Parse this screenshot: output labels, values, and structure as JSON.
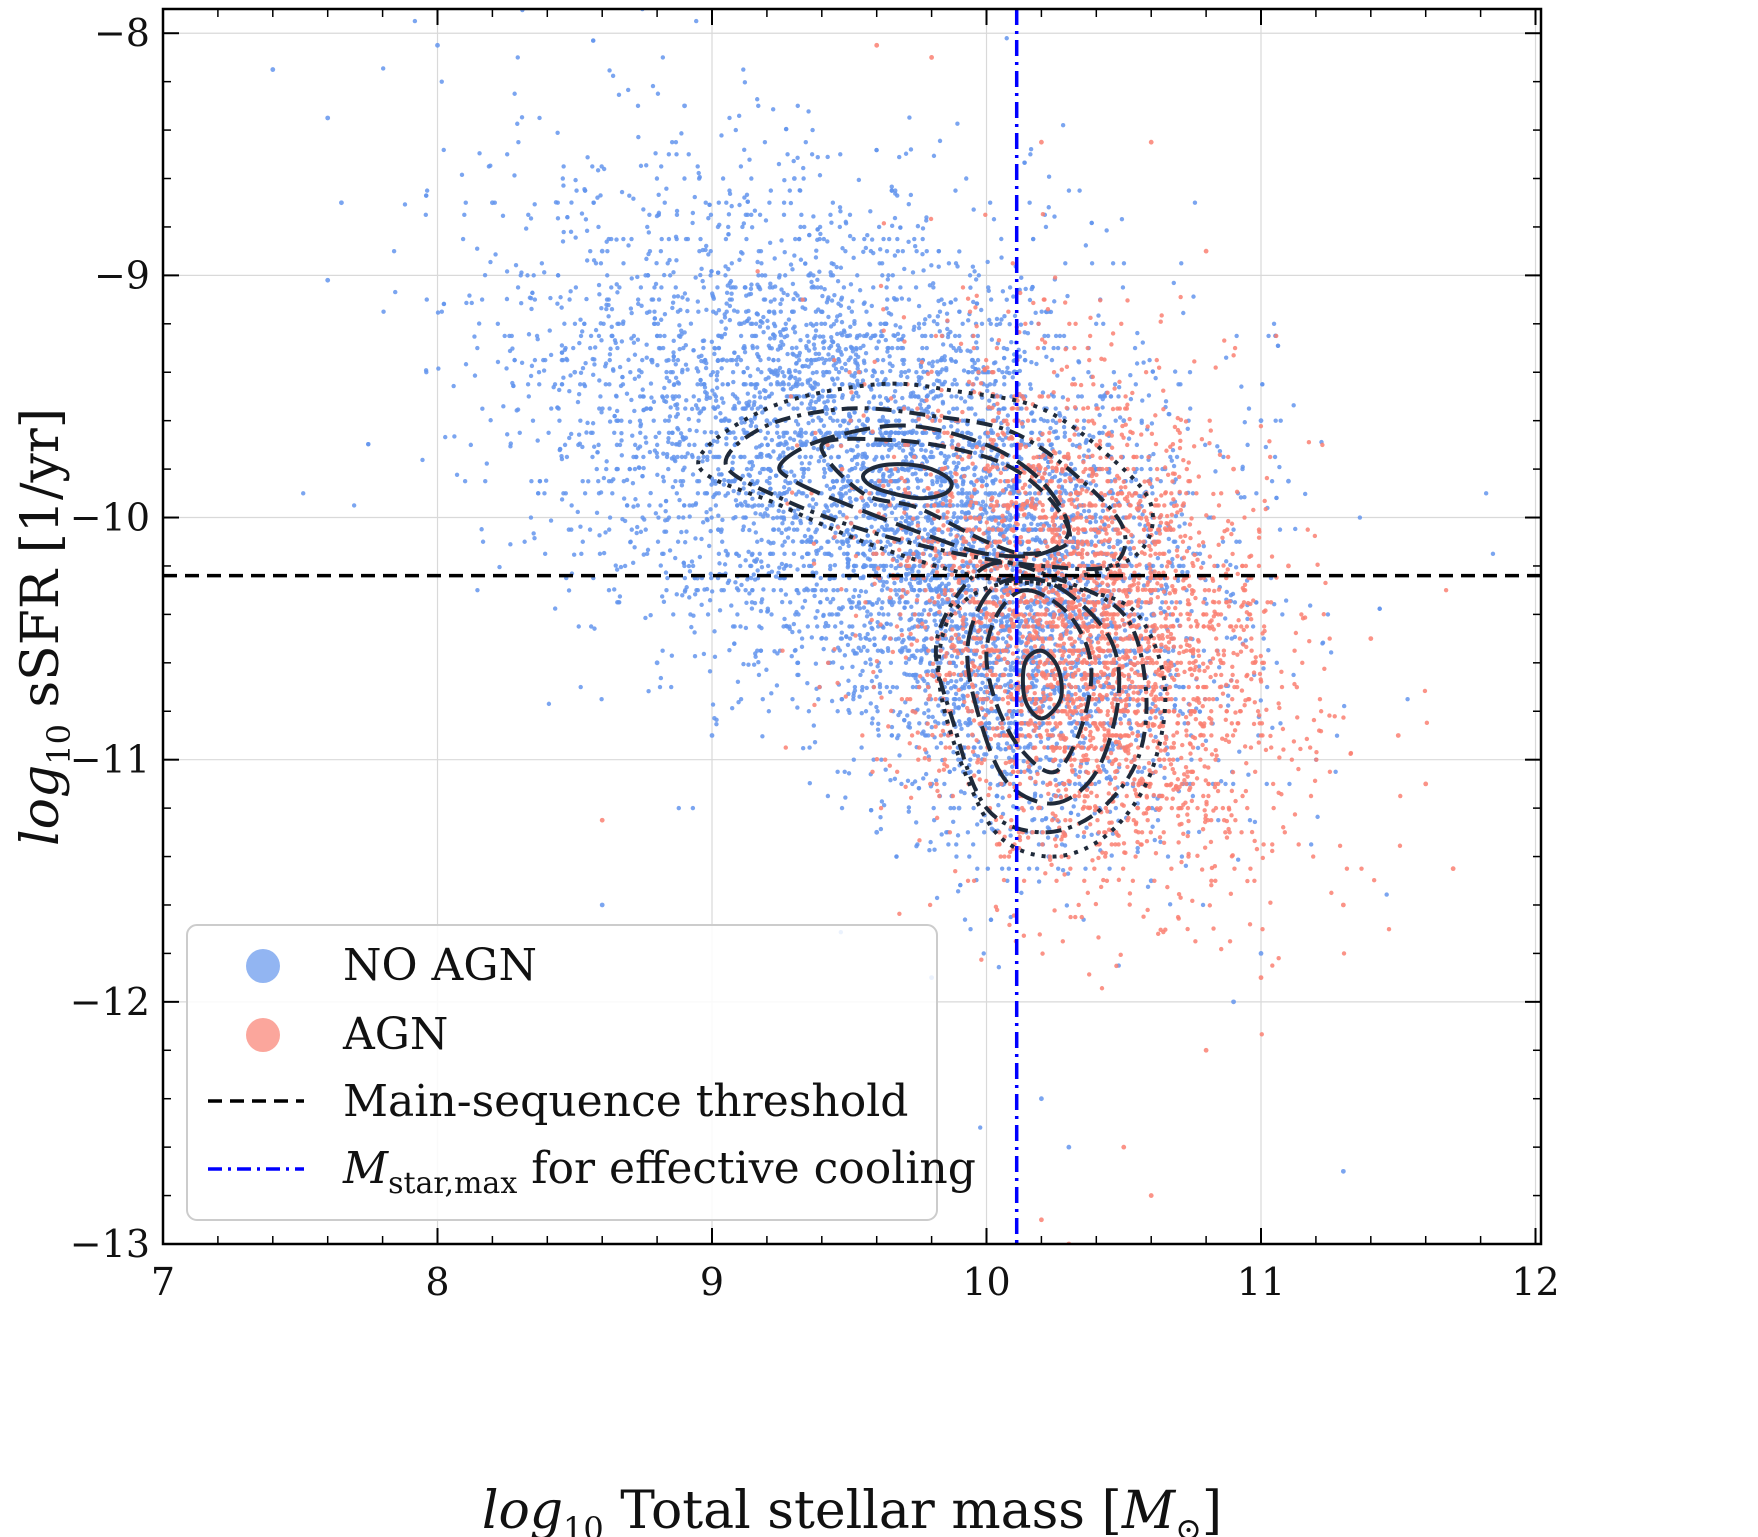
{
  "chart_data": {
    "type": "scatter",
    "xlabel": {
      "prefix": "log",
      "prefix_sub": "10",
      "text": " Total stellar mass [",
      "symbol": "M",
      "symbol_sub": "⊙",
      "suffix": "]"
    },
    "ylabel": {
      "prefix": "log",
      "prefix_sub": "10",
      "text": " sSFR [1/yr]"
    },
    "xlim": [
      7,
      12.02
    ],
    "ylim": [
      -13,
      -7.9
    ],
    "x_ticks": [
      7,
      8,
      9,
      10,
      11,
      12
    ],
    "y_ticks": [
      -8,
      -9,
      -10,
      -11,
      -12,
      -13
    ],
    "x_tick_labels": [
      "7",
      "8",
      "9",
      "10",
      "11",
      "12"
    ],
    "y_tick_labels": [
      "−8",
      "−9",
      "−10",
      "−11",
      "−12",
      "−13"
    ],
    "grid": true,
    "legend_placement": "lower-left",
    "colors": {
      "no_agn": "#6495ED",
      "agn": "#FA8072",
      "threshold": "#000000",
      "mstar_line": "#0000FF",
      "contour": "#1f2a3a"
    },
    "series": [
      {
        "name": "NO AGN",
        "type": "scatter",
        "color": "#6495ED",
        "distribution": {
          "center": [
            9.55,
            -9.75
          ],
          "spread": [
            0.6,
            0.5
          ],
          "quenched_center": [
            10.15,
            -10.6
          ],
          "quenched_spread": [
            0.3,
            0.4
          ]
        },
        "sample_points": [
          [
            7.4,
            -8.15
          ],
          [
            7.6,
            -8.35
          ],
          [
            7.65,
            -8.7
          ],
          [
            7.6,
            -9.02
          ],
          [
            8.0,
            -8.05
          ],
          [
            8.2,
            -8.7
          ],
          [
            8.6,
            -8.9
          ],
          [
            8.9,
            -8.3
          ],
          [
            9.3,
            -8.6
          ],
          [
            9.1,
            -9.2
          ],
          [
            8.5,
            -9.4
          ],
          [
            9.2,
            -9.6
          ],
          [
            9.6,
            -9.3
          ],
          [
            10.1,
            -9.4
          ],
          [
            10.5,
            -9.6
          ],
          [
            11.0,
            -9.6
          ],
          [
            11.1,
            -9.85
          ],
          [
            10.4,
            -10.3
          ],
          [
            9.0,
            -10.9
          ],
          [
            8.8,
            -10.6
          ],
          [
            9.6,
            -11.3
          ],
          [
            9.9,
            -11.2
          ],
          [
            10.6,
            -11.5
          ],
          [
            11.0,
            -11.8
          ],
          [
            10.2,
            -12.4
          ],
          [
            10.3,
            -12.6
          ],
          [
            10.9,
            -12.0
          ],
          [
            11.3,
            -12.7
          ],
          [
            8.6,
            -11.6
          ],
          [
            9.8,
            -11.9
          ]
        ]
      },
      {
        "name": "AGN",
        "type": "scatter",
        "color": "#FA8072",
        "distribution": {
          "center": [
            10.35,
            -10.45
          ],
          "spread": [
            0.35,
            0.5
          ]
        },
        "sample_points": [
          [
            9.6,
            -8.05
          ],
          [
            9.8,
            -8.1
          ],
          [
            10.2,
            -8.45
          ],
          [
            10.6,
            -8.45
          ],
          [
            10.8,
            -8.9
          ],
          [
            10.9,
            -9.8
          ],
          [
            11.1,
            -10.2
          ],
          [
            11.4,
            -10.5
          ],
          [
            11.5,
            -10.9
          ],
          [
            11.6,
            -11.1
          ],
          [
            11.7,
            -11.45
          ],
          [
            11.3,
            -11.6
          ],
          [
            11.0,
            -11.9
          ],
          [
            10.8,
            -12.2
          ],
          [
            10.5,
            -12.6
          ],
          [
            10.2,
            -12.9
          ],
          [
            10.3,
            -13.0
          ],
          [
            10.6,
            -12.8
          ],
          [
            8.6,
            -11.25
          ],
          [
            9.8,
            -10.5
          ]
        ]
      }
    ],
    "reference_lines": [
      {
        "name": "Main-sequence threshold",
        "orientation": "horizontal",
        "value": -10.24,
        "style": "dashed",
        "color": "#000000"
      },
      {
        "name": "M_star,max for effective cooling",
        "orientation": "vertical",
        "value": 10.11,
        "style": "dashdot",
        "color": "#0000FF"
      }
    ],
    "contours": [
      {
        "group": "star-forming",
        "levels": [
          {
            "style": "solid",
            "points": [
              [
                9.7,
                -9.78
              ],
              [
                9.8,
                -9.8
              ],
              [
                9.87,
                -9.85
              ],
              [
                9.85,
                -9.9
              ],
              [
                9.75,
                -9.92
              ],
              [
                9.6,
                -9.88
              ],
              [
                9.55,
                -9.83
              ],
              [
                9.6,
                -9.79
              ]
            ]
          },
          {
            "style": "dashed",
            "points": [
              [
                9.4,
                -9.7
              ],
              [
                9.65,
                -9.68
              ],
              [
                9.9,
                -9.72
              ],
              [
                10.1,
                -9.8
              ],
              [
                10.25,
                -9.95
              ],
              [
                10.3,
                -10.1
              ],
              [
                10.15,
                -10.15
              ],
              [
                10.0,
                -10.1
              ],
              [
                9.75,
                -9.96
              ],
              [
                9.55,
                -9.9
              ]
            ]
          },
          {
            "style": "longdash",
            "points": [
              [
                9.25,
                -9.78
              ],
              [
                9.4,
                -9.68
              ],
              [
                9.7,
                -9.62
              ],
              [
                10.0,
                -9.7
              ],
              [
                10.2,
                -9.85
              ],
              [
                10.3,
                -10.05
              ],
              [
                10.2,
                -10.15
              ],
              [
                10.0,
                -10.15
              ],
              [
                9.8,
                -10.08
              ],
              [
                9.5,
                -9.95
              ],
              [
                9.3,
                -9.85
              ]
            ]
          },
          {
            "style": "dashdot",
            "points": [
              [
                9.05,
                -9.78
              ],
              [
                9.2,
                -9.62
              ],
              [
                9.5,
                -9.55
              ],
              [
                9.8,
                -9.58
              ],
              [
                10.1,
                -9.65
              ],
              [
                10.35,
                -9.85
              ],
              [
                10.5,
                -10.05
              ],
              [
                10.45,
                -10.2
              ],
              [
                10.2,
                -10.2
              ],
              [
                9.9,
                -10.15
              ],
              [
                9.55,
                -10.05
              ],
              [
                9.25,
                -9.92
              ]
            ]
          },
          {
            "style": "dotted",
            "points": [
              [
                8.95,
                -9.78
              ],
              [
                9.2,
                -9.55
              ],
              [
                9.6,
                -9.45
              ],
              [
                9.9,
                -9.48
              ],
              [
                10.2,
                -9.55
              ],
              [
                10.45,
                -9.75
              ],
              [
                10.6,
                -9.95
              ],
              [
                10.55,
                -10.15
              ],
              [
                10.3,
                -10.25
              ],
              [
                10.0,
                -10.25
              ],
              [
                9.6,
                -10.12
              ],
              [
                9.25,
                -9.95
              ]
            ]
          }
        ]
      },
      {
        "group": "quenched",
        "levels": [
          {
            "style": "solid",
            "points": [
              [
                10.2,
                -10.55
              ],
              [
                10.26,
                -10.62
              ],
              [
                10.27,
                -10.75
              ],
              [
                10.2,
                -10.83
              ],
              [
                10.14,
                -10.75
              ],
              [
                10.14,
                -10.6
              ]
            ]
          },
          {
            "style": "dashed",
            "points": [
              [
                10.15,
                -10.3
              ],
              [
                10.3,
                -10.4
              ],
              [
                10.38,
                -10.6
              ],
              [
                10.35,
                -10.85
              ],
              [
                10.25,
                -11.05
              ],
              [
                10.12,
                -10.95
              ],
              [
                10.03,
                -10.75
              ],
              [
                10.0,
                -10.55
              ],
              [
                10.05,
                -10.38
              ]
            ]
          },
          {
            "style": "longdash",
            "points": [
              [
                10.12,
                -10.25
              ],
              [
                10.28,
                -10.3
              ],
              [
                10.45,
                -10.5
              ],
              [
                10.48,
                -10.75
              ],
              [
                10.4,
                -11.05
              ],
              [
                10.25,
                -11.18
              ],
              [
                10.08,
                -11.1
              ],
              [
                9.98,
                -10.85
              ],
              [
                9.93,
                -10.55
              ],
              [
                10.0,
                -10.32
              ]
            ]
          },
          {
            "style": "dashdot",
            "points": [
              [
                10.0,
                -10.2
              ],
              [
                10.25,
                -10.25
              ],
              [
                10.5,
                -10.4
              ],
              [
                10.58,
                -10.7
              ],
              [
                10.55,
                -11.0
              ],
              [
                10.4,
                -11.22
              ],
              [
                10.2,
                -11.3
              ],
              [
                10.0,
                -11.2
              ],
              [
                9.88,
                -10.85
              ],
              [
                9.82,
                -10.5
              ]
            ]
          },
          {
            "style": "dotted",
            "points": [
              [
                10.1,
                -10.27
              ],
              [
                10.35,
                -10.3
              ],
              [
                10.55,
                -10.4
              ],
              [
                10.65,
                -10.7
              ],
              [
                10.6,
                -11.05
              ],
              [
                10.45,
                -11.3
              ],
              [
                10.25,
                -11.4
              ],
              [
                10.05,
                -11.32
              ],
              [
                9.92,
                -11.05
              ],
              [
                9.83,
                -10.7
              ],
              [
                9.85,
                -10.45
              ],
              [
                9.95,
                -10.32
              ]
            ]
          }
        ]
      }
    ],
    "legend": {
      "entries": [
        {
          "key": "no_agn",
          "label": "NO AGN",
          "marker": "circle"
        },
        {
          "key": "agn",
          "label": "AGN",
          "marker": "circle"
        },
        {
          "key": "threshold",
          "label": "Main-sequence threshold",
          "marker": "dashed-line"
        },
        {
          "key": "mstar_line",
          "label_symbol": "M",
          "label_sub": "star,max",
          "label_rest": " for effective cooling",
          "marker": "dashdot-line"
        }
      ]
    }
  }
}
